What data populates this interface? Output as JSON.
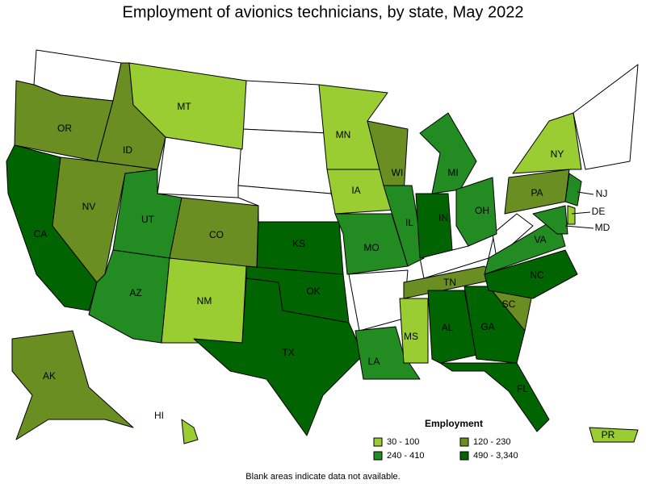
{
  "title": "Employment of avionics technicians, by state, May 2022",
  "legend": {
    "title": "Employment",
    "classes": [
      {
        "label": "30 - 100",
        "color": "#9acd32"
      },
      {
        "label": "120 - 230",
        "color": "#6b8e23"
      },
      {
        "label": "240 - 410",
        "color": "#228b22"
      },
      {
        "label": "490 - 3,340",
        "color": "#006400"
      }
    ]
  },
  "states": [
    {
      "label": "OR",
      "class": 1
    },
    {
      "label": "ID",
      "class": 1
    },
    {
      "label": "MT",
      "class": 0
    },
    {
      "label": "CA",
      "class": 3
    },
    {
      "label": "NV",
      "class": 1
    },
    {
      "label": "UT",
      "class": 2
    },
    {
      "label": "CO",
      "class": 1
    },
    {
      "label": "AZ",
      "class": 2
    },
    {
      "label": "NM",
      "class": 0
    },
    {
      "label": "KS",
      "class": 3
    },
    {
      "label": "OK",
      "class": 3
    },
    {
      "label": "TX",
      "class": 3
    },
    {
      "label": "MN",
      "class": 0
    },
    {
      "label": "IA",
      "class": 0
    },
    {
      "label": "WI",
      "class": 1
    },
    {
      "label": "MO",
      "class": 2
    },
    {
      "label": "IL",
      "class": 2
    },
    {
      "label": "IN",
      "class": 3
    },
    {
      "label": "MI",
      "class": 2
    },
    {
      "label": "OH",
      "class": 2
    },
    {
      "label": "LA",
      "class": 2
    },
    {
      "label": "MS",
      "class": 0
    },
    {
      "label": "TN",
      "class": 1
    },
    {
      "label": "AL",
      "class": 3
    },
    {
      "label": "GA",
      "class": 3
    },
    {
      "label": "FL",
      "class": 3
    },
    {
      "label": "SC",
      "class": 1
    },
    {
      "label": "NC",
      "class": 3
    },
    {
      "label": "VA",
      "class": 2
    },
    {
      "label": "PA",
      "class": 1
    },
    {
      "label": "NY",
      "class": 0
    },
    {
      "label": "NJ",
      "class": 2
    },
    {
      "label": "DE",
      "class": 0
    },
    {
      "label": "MD",
      "class": 2
    },
    {
      "label": "AK",
      "class": 1
    },
    {
      "label": "HI",
      "class": 0
    },
    {
      "label": "PR",
      "class": 0
    }
  ],
  "note": "Blank areas indicate data not available."
}
